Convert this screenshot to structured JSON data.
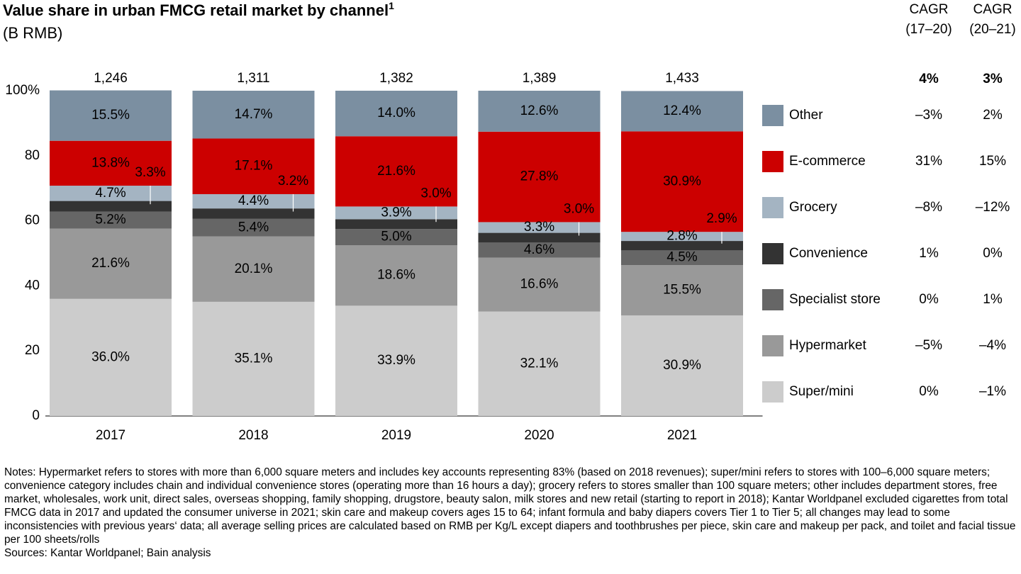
{
  "chart_data": {
    "type": "stacked_bar",
    "title": "Value share in urban FMCG retail market by channel",
    "title_sup": "1",
    "subtitle": "(B RMB)",
    "categories": [
      "2017",
      "2018",
      "2019",
      "2020",
      "2021"
    ],
    "ylim": [
      0,
      100
    ],
    "yticks": [
      0,
      20,
      40,
      60,
      80,
      {
        "value": 100,
        "label": "100%"
      }
    ],
    "totals": {
      "values": [
        1246,
        1311,
        1382,
        1389,
        1433
      ],
      "value_labels": [
        "1,246",
        "1,311",
        "1,382",
        "1,389",
        "1,433"
      ]
    },
    "series": [
      {
        "name": "Super/mini",
        "color": "#cccccc",
        "values": [
          36.0,
          35.1,
          33.9,
          32.1,
          30.9
        ],
        "value_labels": [
          "36.0%",
          "35.1%",
          "33.9%",
          "32.1%",
          "30.9%"
        ],
        "cagr": [
          "0%",
          "–1%"
        ]
      },
      {
        "name": "Hypermarket",
        "color": "#999999",
        "values": [
          21.6,
          20.1,
          18.6,
          16.6,
          15.5
        ],
        "value_labels": [
          "21.6%",
          "20.1%",
          "18.6%",
          "16.6%",
          "15.5%"
        ],
        "cagr": [
          "–5%",
          "–4%"
        ]
      },
      {
        "name": "Specialist store",
        "color": "#666666",
        "values": [
          5.2,
          5.4,
          5.0,
          4.6,
          4.5
        ],
        "value_labels": [
          "5.2%",
          "5.4%",
          "5.0%",
          "4.6%",
          "4.5%"
        ],
        "cagr": [
          "0%",
          "1%"
        ]
      },
      {
        "name": "Convenience",
        "color": "#333333",
        "values": [
          3.3,
          3.2,
          3.0,
          3.0,
          2.9
        ],
        "value_labels": [
          "3.3%",
          "3.2%",
          "3.0%",
          "3.0%",
          "2.9%"
        ],
        "cagr": [
          "1%",
          "0%"
        ]
      },
      {
        "name": "Grocery",
        "color": "#a4b4c2",
        "values": [
          4.7,
          4.4,
          3.9,
          3.3,
          2.8
        ],
        "value_labels": [
          "4.7%",
          "4.4%",
          "3.9%",
          "3.3%",
          "2.8%"
        ],
        "cagr": [
          "–8%",
          "–12%"
        ]
      },
      {
        "name": "E-commerce",
        "color": "#cc0000",
        "values": [
          13.8,
          17.1,
          21.6,
          27.8,
          30.9
        ],
        "value_labels": [
          "13.8%",
          "17.1%",
          "21.6%",
          "27.8%",
          "30.9%"
        ],
        "cagr": [
          "31%",
          "15%"
        ]
      },
      {
        "name": "Other",
        "color": "#7b8fa1",
        "values": [
          15.5,
          14.7,
          14.0,
          12.6,
          12.4
        ],
        "value_labels": [
          "15.5%",
          "14.7%",
          "14.0%",
          "12.6%",
          "12.4%"
        ],
        "cagr": [
          "–3%",
          "2%"
        ]
      }
    ],
    "cagr_headers": [
      [
        "CAGR",
        "(17–20)"
      ],
      [
        "CAGR",
        "(20–21)"
      ]
    ],
    "cagr_total": [
      "4%",
      "3%"
    ],
    "notes": "Notes: Hypermarket refers to stores with more than 6,000 square meters and includes key accounts representing 83% (based on 2018 revenues); super/mini refers to stores with 100–6,000 square meters; convenience category includes chain and individual convenience stores (operating more than 16 hours a day); grocery refers to stores smaller than 100 square meters; other includes department stores, free market, wholesales, work unit, direct sales, overseas shopping, family shopping, drugstore, beauty salon, milk stores and new retail (starting to report in 2018); Kantar Worldpanel excluded cigarettes from total FMCG data in 2017 and updated the consumer universe in 2021; skin care and makeup covers ages 15 to 64; infant formula and baby diapers covers Tier 1 to Tier 5; all changes may lead to some inconsistencies with previous years‘ data; all average selling prices are calculated based on RMB per Kg/L except diapers and toothbrushes per piece, skin care and makeup per pack, and toilet and facial tissue per 100 sheets/rolls",
    "sources": "Sources: Kantar Worldpanel; Bain analysis"
  }
}
